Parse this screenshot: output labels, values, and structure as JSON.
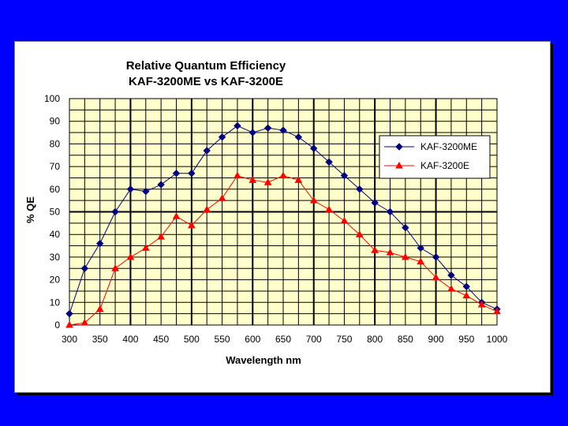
{
  "chart_data": {
    "type": "line",
    "title": "Relative Quantum Efficiency",
    "subtitle": "KAF-3200ME vs KAF-3200E",
    "xlabel": "Wavelength nm",
    "ylabel": "% QE",
    "xlim": [
      300,
      1000
    ],
    "ylim": [
      0,
      100
    ],
    "x_ticks": [
      300,
      350,
      400,
      450,
      500,
      550,
      600,
      650,
      700,
      750,
      800,
      850,
      900,
      950,
      1000
    ],
    "y_ticks": [
      0,
      10,
      20,
      30,
      40,
      50,
      60,
      70,
      80,
      90,
      100
    ],
    "grid": true,
    "legend_position": "right",
    "plot_background": "#ffffcc",
    "x": [
      300,
      325,
      350,
      375,
      400,
      425,
      450,
      475,
      500,
      525,
      550,
      575,
      600,
      625,
      650,
      675,
      700,
      725,
      750,
      775,
      800,
      825,
      850,
      875,
      900,
      925,
      950,
      975,
      1000
    ],
    "series": [
      {
        "name": "KAF-3200ME",
        "color": "#000080",
        "marker": "diamond",
        "values": [
          5,
          25,
          36,
          50,
          60,
          59,
          62,
          67,
          67,
          77,
          83,
          88,
          85,
          87,
          86,
          83,
          78,
          72,
          66,
          60,
          54,
          50,
          43,
          34,
          30,
          22,
          17,
          10,
          7
        ]
      },
      {
        "name": "KAF-3200E",
        "color": "#ff0000",
        "marker": "triangle",
        "values": [
          0,
          1,
          7,
          25,
          30,
          34,
          39,
          48,
          44,
          51,
          56,
          66,
          64,
          63,
          66,
          64,
          55,
          51,
          46,
          40,
          33,
          32,
          30,
          28,
          21,
          16,
          13,
          9,
          6
        ]
      }
    ]
  }
}
